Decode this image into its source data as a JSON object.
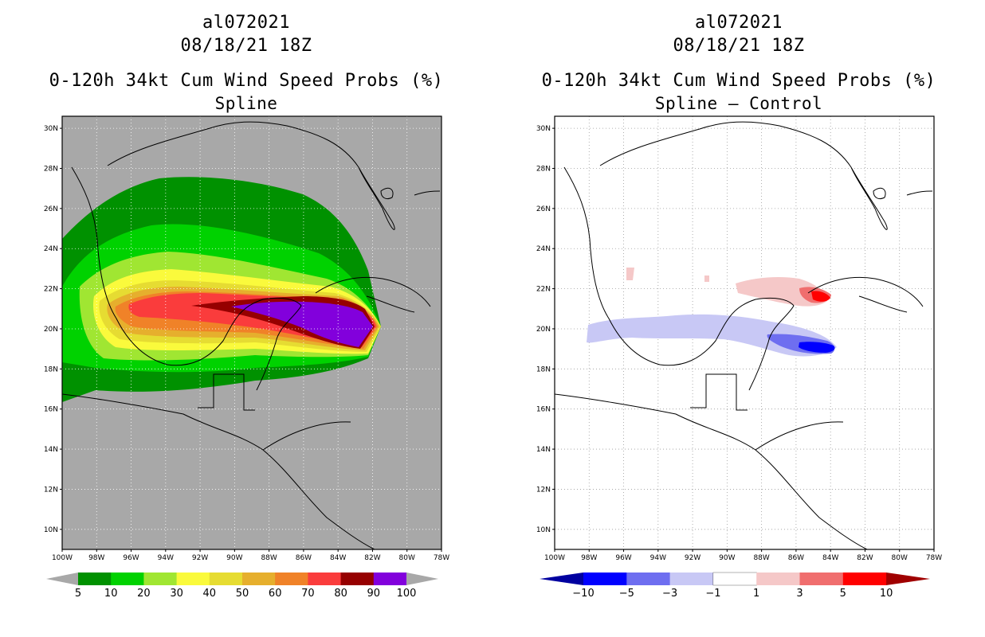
{
  "left": {
    "storm_id": "al072021",
    "datetime": "08/18/21 18Z",
    "product": "0-120h 34kt Cum Wind Speed Probs (%)",
    "subtitle": "Spline",
    "colorbar": {
      "labels": [
        "5",
        "10",
        "20",
        "30",
        "40",
        "50",
        "60",
        "70",
        "80",
        "90",
        "100"
      ],
      "colors": [
        "#009100",
        "#00d200",
        "#a0e632",
        "#fafa3c",
        "#e6dc32",
        "#e6af2d",
        "#f08228",
        "#fa3c3c",
        "#960000",
        "#8200dc"
      ],
      "end_color": "#a8a8a8"
    }
  },
  "right": {
    "storm_id": "al072021",
    "datetime": "08/18/21 18Z",
    "product": "0-120h 34kt Cum Wind Speed Probs (%)",
    "subtitle": "Spline – Control",
    "colorbar": {
      "labels": [
        "−10",
        "−5",
        "−3",
        "−1",
        "1",
        "3",
        "5",
        "10"
      ],
      "colors": [
        "#0000a0",
        "#0000ff",
        "#6e6ef0",
        "#c8c8f5",
        "#ffffff",
        "#f5c8c8",
        "#f06e6e",
        "#ff0000",
        "#a00000"
      ]
    }
  },
  "map": {
    "lat_labels": [
      "10N",
      "12N",
      "14N",
      "16N",
      "18N",
      "20N",
      "22N",
      "24N",
      "26N",
      "28N",
      "30N"
    ],
    "lon_labels": [
      "100W",
      "98W",
      "96W",
      "94W",
      "92W",
      "90W",
      "88W",
      "86W",
      "84W",
      "82W",
      "80W",
      "78W"
    ],
    "background_color": "#a8a8a8"
  }
}
